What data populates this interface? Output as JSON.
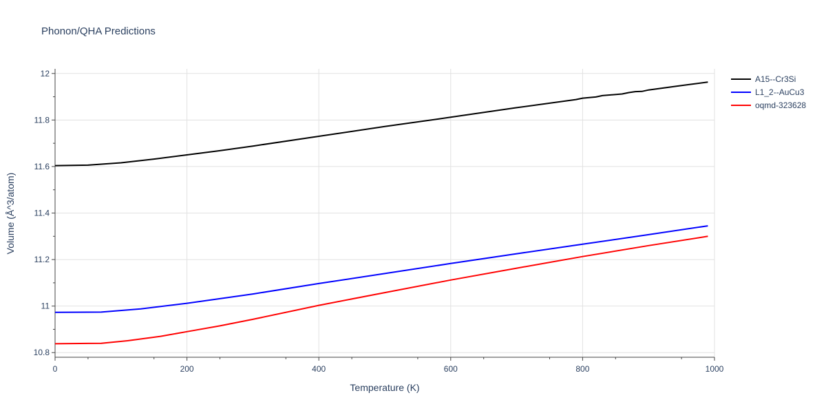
{
  "chart_data": {
    "type": "line",
    "title": "Phonon/QHA Predictions",
    "xlabel": "Temperature (K)",
    "ylabel": "Volume (Å^3/atom)",
    "xlim": [
      0,
      1000
    ],
    "ylim": [
      10.78,
      12.02
    ],
    "x_ticks": [
      0,
      200,
      400,
      600,
      800,
      1000
    ],
    "x_tick_labels": [
      "0",
      "200",
      "400",
      "600",
      "800",
      "1000"
    ],
    "y_ticks": [
      10.8,
      11.0,
      11.2,
      11.4,
      11.6,
      11.8,
      12.0
    ],
    "y_tick_labels": [
      "10.8",
      "11",
      "11.2",
      "11.4",
      "11.6",
      "11.8",
      "12"
    ],
    "grid": true,
    "legend_position": "top-right",
    "series": [
      {
        "name": "A15--Cr3Si",
        "color": "#000000",
        "x": [
          0,
          50,
          100,
          150,
          200,
          250,
          300,
          400,
          500,
          600,
          700,
          790,
          800,
          820,
          830,
          860,
          870,
          880,
          890,
          900,
          950,
          990
        ],
        "y": [
          11.604,
          11.606,
          11.616,
          11.632,
          11.65,
          11.668,
          11.688,
          11.73,
          11.772,
          11.812,
          11.853,
          11.888,
          11.894,
          11.899,
          11.905,
          11.912,
          11.918,
          11.922,
          11.923,
          11.929,
          11.948,
          11.963
        ]
      },
      {
        "name": "L1_2--AuCu3",
        "color": "#0000ff",
        "x": [
          0,
          70,
          130,
          200,
          300,
          400,
          500,
          600,
          700,
          800,
          900,
          990
        ],
        "y": [
          10.973,
          10.974,
          10.988,
          11.012,
          11.052,
          11.097,
          11.14,
          11.183,
          11.225,
          11.266,
          11.307,
          11.345
        ]
      },
      {
        "name": "oqmd-323628",
        "color": "#ff0000",
        "x": [
          0,
          70,
          110,
          160,
          200,
          250,
          300,
          400,
          500,
          600,
          700,
          800,
          900,
          990
        ],
        "y": [
          10.838,
          10.84,
          10.851,
          10.87,
          10.89,
          10.915,
          10.943,
          11.003,
          11.058,
          11.112,
          11.163,
          11.213,
          11.26,
          11.3
        ]
      }
    ]
  }
}
